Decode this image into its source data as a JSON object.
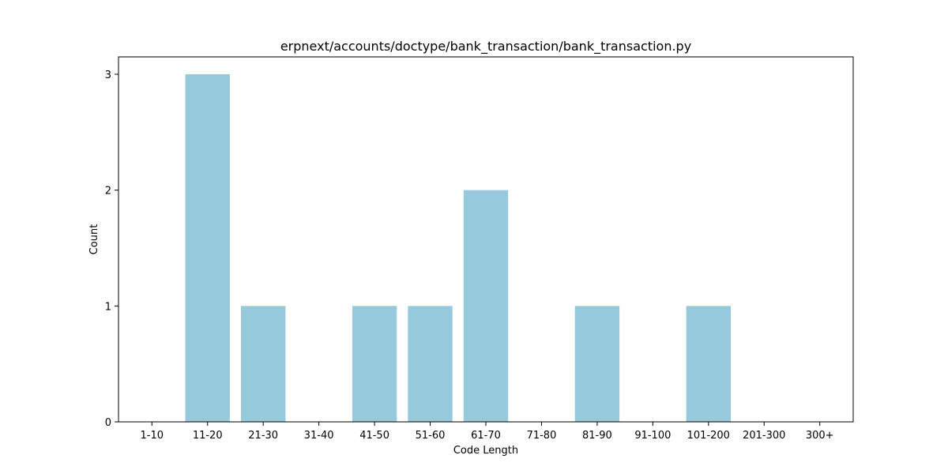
{
  "chart_data": {
    "type": "bar",
    "title": "erpnext/accounts/doctype/bank_transaction/bank_transaction.py",
    "xlabel": "Code Length",
    "ylabel": "Count",
    "categories": [
      "1-10",
      "11-20",
      "21-30",
      "31-40",
      "41-50",
      "51-60",
      "61-70",
      "71-80",
      "81-90",
      "91-100",
      "101-200",
      "201-300",
      "300+"
    ],
    "values": [
      0,
      3,
      1,
      0,
      1,
      1,
      2,
      0,
      1,
      0,
      1,
      0,
      0
    ],
    "ylim": [
      0,
      3.15
    ],
    "yticks": [
      0,
      1,
      2,
      3
    ],
    "bar_color": "#96c9dc",
    "grid": false,
    "legend": "none"
  }
}
